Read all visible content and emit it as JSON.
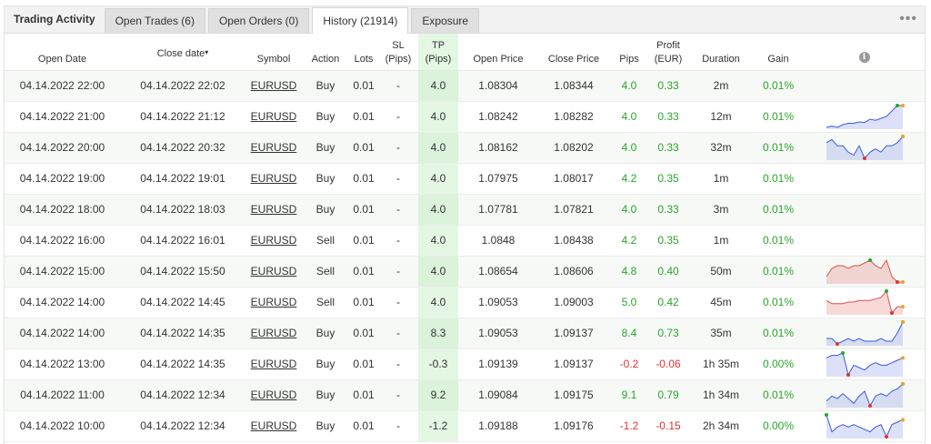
{
  "header": {
    "title": "Trading Activity",
    "tabs": [
      {
        "label": "Open Trades (6)"
      },
      {
        "label": "Open Orders (0)"
      },
      {
        "label": "History (21914)"
      },
      {
        "label": "Exposure"
      }
    ],
    "active_tab": 2
  },
  "columns": {
    "open_date": "Open Date",
    "close_date": "Close date",
    "close_date_sort": "▾",
    "symbol": "Symbol",
    "action": "Action",
    "lots": "Lots",
    "sl_1": "SL",
    "sl_2": "(Pips)",
    "tp_1": "TP",
    "tp_2": "(Pips)",
    "open_price": "Open Price",
    "close_price": "Close Price",
    "pips": "Pips",
    "profit_1": "Profit",
    "profit_2": "(EUR)",
    "duration": "Duration",
    "gain": "Gain",
    "info": "i"
  },
  "colors": {
    "positive": "#2aa52a",
    "negative": "#e03333",
    "tp_highlight": "#e3f7e3",
    "spark_blue": "#3b5bdb",
    "spark_red": "#d9534f"
  },
  "rows": [
    {
      "open": "04.14.2022 22:00",
      "close": "04.14.2022 22:02",
      "symbol": "EURUSD",
      "action": "Buy",
      "lots": "0.01",
      "sl": "-",
      "tp": "4.0",
      "open_price": "1.08304",
      "close_price": "1.08344",
      "pips": "4.0",
      "profit": "0.33",
      "duration": "2m",
      "gain": "0.01%",
      "sign": "pos",
      "spark": null
    },
    {
      "open": "04.14.2022 21:00",
      "close": "04.14.2022 21:12",
      "symbol": "EURUSD",
      "action": "Buy",
      "lots": "0.01",
      "sl": "-",
      "tp": "4.0",
      "open_price": "1.08242",
      "close_price": "1.08282",
      "pips": "4.0",
      "profit": "0.33",
      "duration": "12m",
      "gain": "0.01%",
      "sign": "pos",
      "spark": {
        "color": "blue",
        "values": [
          2,
          2.5,
          2,
          3,
          3.5,
          3.5,
          4,
          3.8,
          5,
          4.6,
          5.3,
          6,
          8,
          10,
          10
        ],
        "max_idx": 13,
        "min_idx": -1
      }
    },
    {
      "open": "04.14.2022 20:00",
      "close": "04.14.2022 20:32",
      "symbol": "EURUSD",
      "action": "Buy",
      "lots": "0.01",
      "sl": "-",
      "tp": "4.0",
      "open_price": "1.08162",
      "close_price": "1.08202",
      "pips": "4.0",
      "profit": "0.33",
      "duration": "32m",
      "gain": "0.01%",
      "sign": "pos",
      "spark": {
        "color": "blue",
        "values": [
          7,
          8,
          6,
          6,
          4,
          3,
          6,
          2,
          4,
          5,
          4,
          6,
          6,
          7,
          9
        ],
        "max_idx": 14,
        "min_idx": 7
      }
    },
    {
      "open": "04.14.2022 19:00",
      "close": "04.14.2022 19:01",
      "symbol": "EURUSD",
      "action": "Buy",
      "lots": "0.01",
      "sl": "-",
      "tp": "4.0",
      "open_price": "1.07975",
      "close_price": "1.08017",
      "pips": "4.2",
      "profit": "0.35",
      "duration": "1m",
      "gain": "0.01%",
      "sign": "pos",
      "spark": null
    },
    {
      "open": "04.14.2022 18:00",
      "close": "04.14.2022 18:03",
      "symbol": "EURUSD",
      "action": "Buy",
      "lots": "0.01",
      "sl": "-",
      "tp": "4.0",
      "open_price": "1.07781",
      "close_price": "1.07821",
      "pips": "4.0",
      "profit": "0.33",
      "duration": "3m",
      "gain": "0.01%",
      "sign": "pos",
      "spark": null
    },
    {
      "open": "04.14.2022 16:00",
      "close": "04.14.2022 16:01",
      "symbol": "EURUSD",
      "action": "Sell",
      "lots": "0.01",
      "sl": "-",
      "tp": "4.0",
      "open_price": "1.0848",
      "close_price": "1.08438",
      "pips": "4.2",
      "profit": "0.35",
      "duration": "1m",
      "gain": "0.01%",
      "sign": "pos",
      "spark": null
    },
    {
      "open": "04.14.2022 15:00",
      "close": "04.14.2022 15:50",
      "symbol": "EURUSD",
      "action": "Sell",
      "lots": "0.01",
      "sl": "-",
      "tp": "4.0",
      "open_price": "1.08654",
      "close_price": "1.08606",
      "pips": "4.8",
      "profit": "0.40",
      "duration": "50m",
      "gain": "0.01%",
      "sign": "pos",
      "spark": {
        "color": "red",
        "values": [
          3,
          6,
          7,
          7,
          6,
          7,
          7,
          8,
          9,
          7,
          6,
          9,
          3,
          1,
          1
        ],
        "max_idx": 8,
        "min_idx": 13
      }
    },
    {
      "open": "04.14.2022 14:00",
      "close": "04.14.2022 14:45",
      "symbol": "EURUSD",
      "action": "Sell",
      "lots": "0.01",
      "sl": "-",
      "tp": "4.0",
      "open_price": "1.09053",
      "close_price": "1.09003",
      "pips": "5.0",
      "profit": "0.42",
      "duration": "45m",
      "gain": "0.01%",
      "sign": "pos",
      "spark": {
        "color": "red",
        "values": [
          5,
          4,
          4,
          4,
          4.5,
          4.5,
          5,
          5,
          5,
          5.5,
          6,
          8,
          1,
          3,
          3
        ],
        "max_idx": 11,
        "min_idx": 12
      }
    },
    {
      "open": "04.14.2022 14:00",
      "close": "04.14.2022 14:35",
      "symbol": "EURUSD",
      "action": "Buy",
      "lots": "0.01",
      "sl": "-",
      "tp": "8.3",
      "open_price": "1.09053",
      "close_price": "1.09137",
      "pips": "8.4",
      "profit": "0.73",
      "duration": "35m",
      "gain": "0.01%",
      "sign": "pos",
      "spark": {
        "color": "blue",
        "values": [
          4,
          4,
          2,
          3,
          4,
          3,
          4,
          3,
          3,
          3,
          4,
          3,
          3,
          6,
          10
        ],
        "max_idx": 14,
        "min_idx": 2
      }
    },
    {
      "open": "04.14.2022 13:00",
      "close": "04.14.2022 14:35",
      "symbol": "EURUSD",
      "action": "Buy",
      "lots": "0.01",
      "sl": "-",
      "tp": "-0.3",
      "open_price": "1.09139",
      "close_price": "1.09137",
      "pips": "-0.2",
      "profit": "-0.06",
      "duration": "1h 35m",
      "gain": "0.00%",
      "sign": "neg",
      "spark": {
        "color": "blue",
        "values": [
          8,
          9,
          9,
          10,
          1,
          5,
          4,
          3,
          5,
          6,
          5,
          5,
          6,
          7,
          8
        ],
        "max_idx": 3,
        "min_idx": 4
      }
    },
    {
      "open": "04.14.2022 11:00",
      "close": "04.14.2022 12:34",
      "symbol": "EURUSD",
      "action": "Buy",
      "lots": "0.01",
      "sl": "-",
      "tp": "9.2",
      "open_price": "1.09084",
      "close_price": "1.09175",
      "pips": "9.1",
      "profit": "0.79",
      "duration": "1h 34m",
      "gain": "0.01%",
      "sign": "pos",
      "spark": {
        "color": "blue",
        "values": [
          3,
          5,
          4,
          6,
          4,
          2,
          5,
          7,
          1,
          5,
          6,
          5,
          7,
          8,
          10
        ],
        "max_idx": 14,
        "min_idx": 8
      }
    },
    {
      "open": "04.14.2022 10:00",
      "close": "04.14.2022 12:34",
      "symbol": "EURUSD",
      "action": "Buy",
      "lots": "0.01",
      "sl": "-",
      "tp": "-1.2",
      "open_price": "1.09188",
      "close_price": "1.09176",
      "pips": "-1.2",
      "profit": "-0.15",
      "duration": "2h 34m",
      "gain": "0.00%",
      "sign": "neg",
      "spark": {
        "color": "blue",
        "values": [
          10,
          3,
          5,
          6,
          5,
          6,
          5,
          4,
          3,
          5,
          6,
          1,
          6,
          7,
          8
        ],
        "max_idx": 0,
        "min_idx": 11
      }
    }
  ]
}
